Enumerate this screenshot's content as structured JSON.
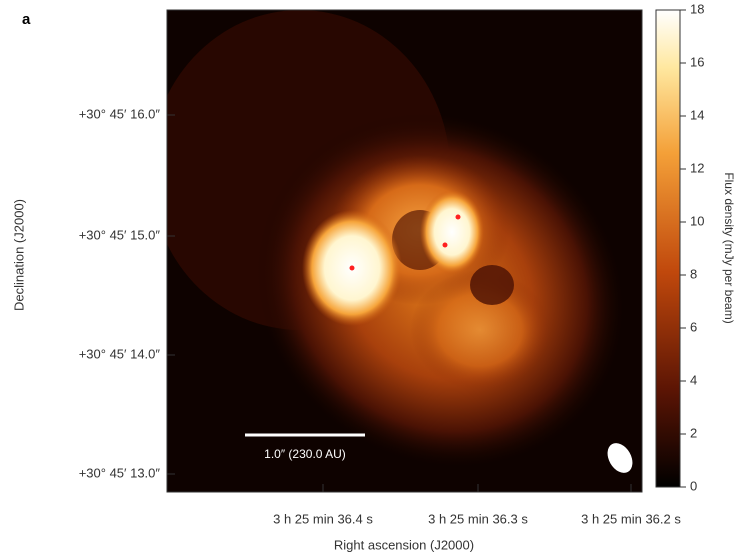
{
  "panel_label": "a",
  "chart_data": {
    "type": "image",
    "xlabel": "Right ascension (J2000)",
    "ylabel": "Declination (J2000)",
    "xtick_labels": [
      "3 h 25 min 36.4 s",
      "3 h 25 min 36.3 s",
      "3 h 25 min 36.2 s"
    ],
    "ytick_labels": [
      "+30° 45′ 16.0″",
      "+30° 45′ 15.0″",
      "+30° 45′ 14.0″",
      "+30° 45′ 13.0″"
    ],
    "scale_bar_label": "1.0″ (230.0 AU)",
    "colorbar": {
      "label": "Flux density (mJy per beam)",
      "lim": [
        0,
        18
      ],
      "ticks": [
        0,
        2,
        4,
        6,
        8,
        10,
        12,
        14,
        16,
        18
      ]
    }
  }
}
